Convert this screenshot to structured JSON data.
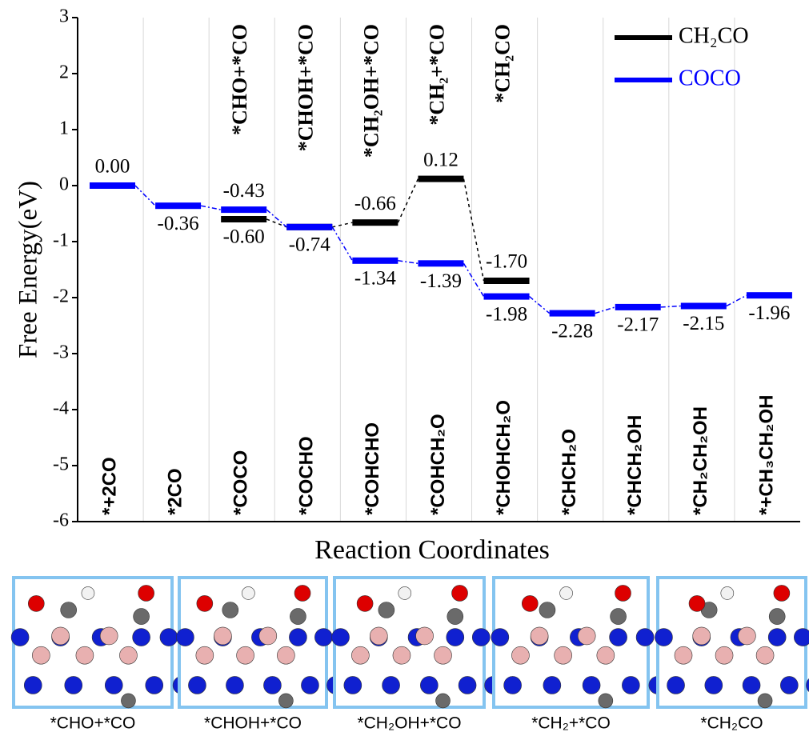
{
  "chart_data": {
    "type": "energy-levels",
    "y_label": "Free Energy(eV)",
    "x_label": "Reaction Coordinates",
    "categories": [
      "*+2CO",
      "*2CO",
      "*COCO",
      "*COCHO",
      "*COHCHO",
      "*COHCH₂O",
      "*CHOHCH₂O",
      "*CHCH₂O",
      "*CHCH₂OH",
      "*CH₂CH₂OH",
      "*+CH₃CH₂OH"
    ],
    "upper_labels": [
      null,
      null,
      "*CHO+*CO",
      "*CHOH+*CO",
      "*CH₂OH+*CO",
      "*CH₂+*CO",
      "*CH₂CO",
      null,
      null,
      null,
      null
    ],
    "series": [
      {
        "name": "CH₂CO",
        "color": "#000000",
        "values": [
          null,
          null,
          -0.6,
          -0.74,
          -0.66,
          0.12,
          -1.7,
          null,
          null,
          null,
          null
        ],
        "value_labels": [
          null,
          null,
          "-0.60",
          null,
          "-0.66",
          "0.12",
          "-1.70",
          null,
          null,
          null,
          null
        ]
      },
      {
        "name": "COCO",
        "color": "#0000ff",
        "values": [
          0,
          -0.36,
          -0.43,
          -0.74,
          -1.34,
          -1.39,
          -1.98,
          -2.28,
          -2.17,
          -2.15,
          -1.96
        ],
        "value_labels": [
          "0.00",
          "-0.36",
          "-0.43",
          "-0.74",
          "-1.34",
          "-1.39",
          "-1.98",
          "-2.28",
          "-2.17",
          "-2.15",
          "-1.96"
        ]
      }
    ],
    "ylim": [
      -6,
      3
    ],
    "yticks": [
      -6,
      -5,
      -4,
      -3,
      -2,
      -1,
      0,
      1,
      2,
      3
    ],
    "legend": "upper right"
  },
  "panels": [
    {
      "caption": "*CHO+*CO"
    },
    {
      "caption": "*CHOH+*CO"
    },
    {
      "caption": "*CH₂OH+*CO"
    },
    {
      "caption": "*CH₂+*CO"
    },
    {
      "caption": "*CH₂CO"
    }
  ]
}
